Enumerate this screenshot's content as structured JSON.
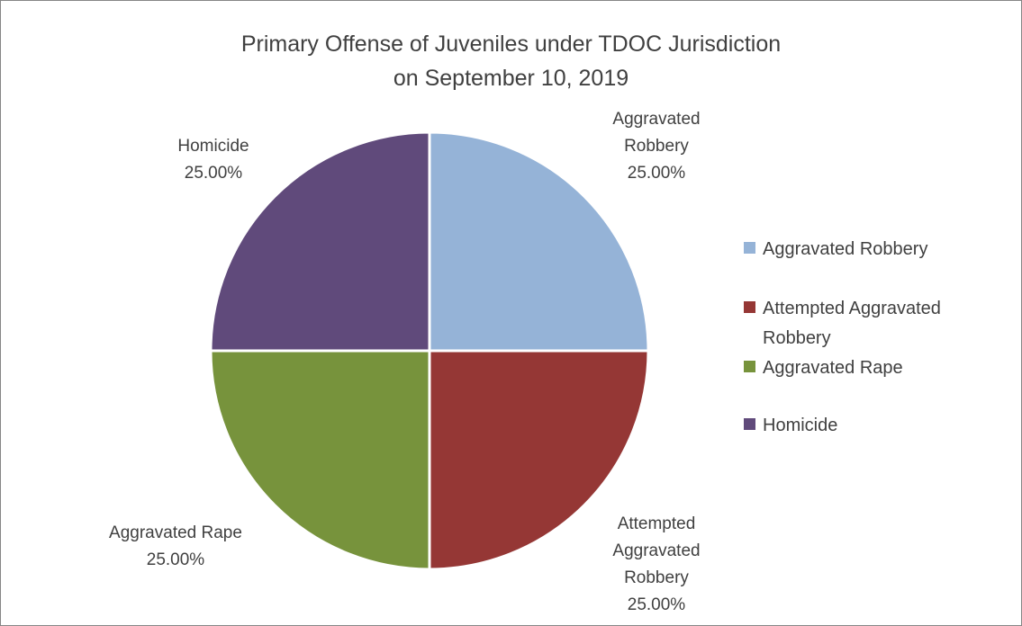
{
  "chart_data": {
    "type": "pie",
    "title_lines": [
      "Primary Offense of Juveniles under TDOC Jurisdiction",
      "on September 10, 2019"
    ],
    "slices": [
      {
        "key": "aggravated-robbery",
        "legend_lines": [
          "Aggravated Robbery"
        ],
        "label_lines": [
          "Aggravated",
          "Robbery"
        ],
        "value": 25.0,
        "value_label": "25.00%",
        "color": "#95b3d7"
      },
      {
        "key": "attempted-aggravated-robbery",
        "legend_lines": [
          "Attempted Aggravated",
          "Robbery"
        ],
        "label_lines": [
          "Attempted",
          "Aggravated",
          "Robbery"
        ],
        "value": 25.0,
        "value_label": "25.00%",
        "color": "#953735"
      },
      {
        "key": "aggravated-rape",
        "legend_lines": [
          "Aggravated Rape"
        ],
        "label_lines": [
          "Aggravated Rape"
        ],
        "value": 25.0,
        "value_label": "25.00%",
        "color": "#77933c"
      },
      {
        "key": "homicide",
        "legend_lines": [
          "Homicide"
        ],
        "label_lines": [
          "Homicide"
        ],
        "value": 25.0,
        "value_label": "25.00%",
        "color": "#604a7b"
      }
    ],
    "legend_position": "right"
  }
}
